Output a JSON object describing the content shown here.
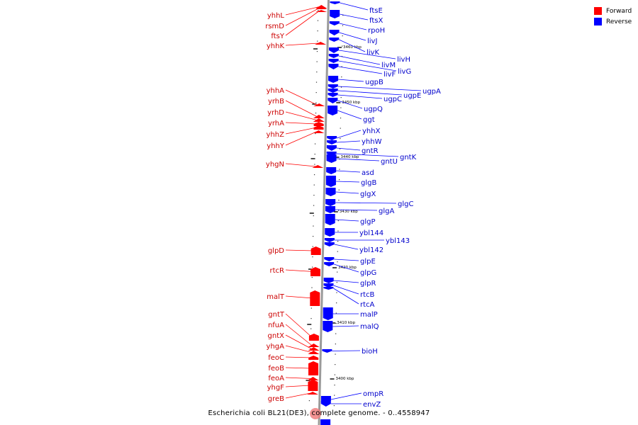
{
  "legend": [
    {
      "label": "Forward",
      "color": "#ff0000"
    },
    {
      "label": "Reverse",
      "color": "#0000ff"
    }
  ],
  "caption": "Escherichia coli BL21(DE3), complete genome. - 0..4558947",
  "colors": {
    "forward": "#ff0000",
    "reverse": "#0000ff",
    "forward_label": "#cc0000",
    "reverse_label": "#0000cc",
    "backbone": "#9a9a9a"
  },
  "kbp_markers": [
    {
      "label": "3460 kbp",
      "position_kbp": 3460
    },
    {
      "label": "3450 kbp",
      "position_kbp": 3450
    },
    {
      "label": "3440 kbp",
      "position_kbp": 3440
    },
    {
      "label": "3430 kbp",
      "position_kbp": 3430
    },
    {
      "label": "3420 kbp",
      "position_kbp": 3420
    },
    {
      "label": "3410 kbp",
      "position_kbp": 3410
    },
    {
      "label": "3400 kbp",
      "position_kbp": 3400
    }
  ],
  "forward_genes": [
    "yhhL",
    "rsmD",
    "ftsY",
    "yhhK",
    "yhhA",
    "yrhB",
    "yrhD",
    "yrhA",
    "yhhZ",
    "yhhY",
    "yhgN",
    "glpD",
    "rtcR",
    "malT",
    "gntT",
    "nfuA",
    "gntX",
    "yhgA",
    "feoC",
    "feoB",
    "feoA",
    "yhgF",
    "greB"
  ],
  "reverse_genes": [
    "ftsE",
    "ftsX",
    "rpoH",
    "livJ",
    "livK",
    "livH",
    "livM",
    "livG",
    "livF",
    "ugpB",
    "ugpA",
    "ugpE",
    "ugpC",
    "ugpQ",
    "ggt",
    "yhhX",
    "yhhW",
    "gntR",
    "gntK",
    "gntU",
    "asd",
    "glgB",
    "glgX",
    "glgC",
    "glgA",
    "glgP",
    "ybl144",
    "ybl143",
    "ybl142",
    "glpE",
    "glpG",
    "glpR",
    "rtcB",
    "rtcA",
    "malP",
    "malQ",
    "bioH",
    "ompR",
    "envZ"
  ]
}
